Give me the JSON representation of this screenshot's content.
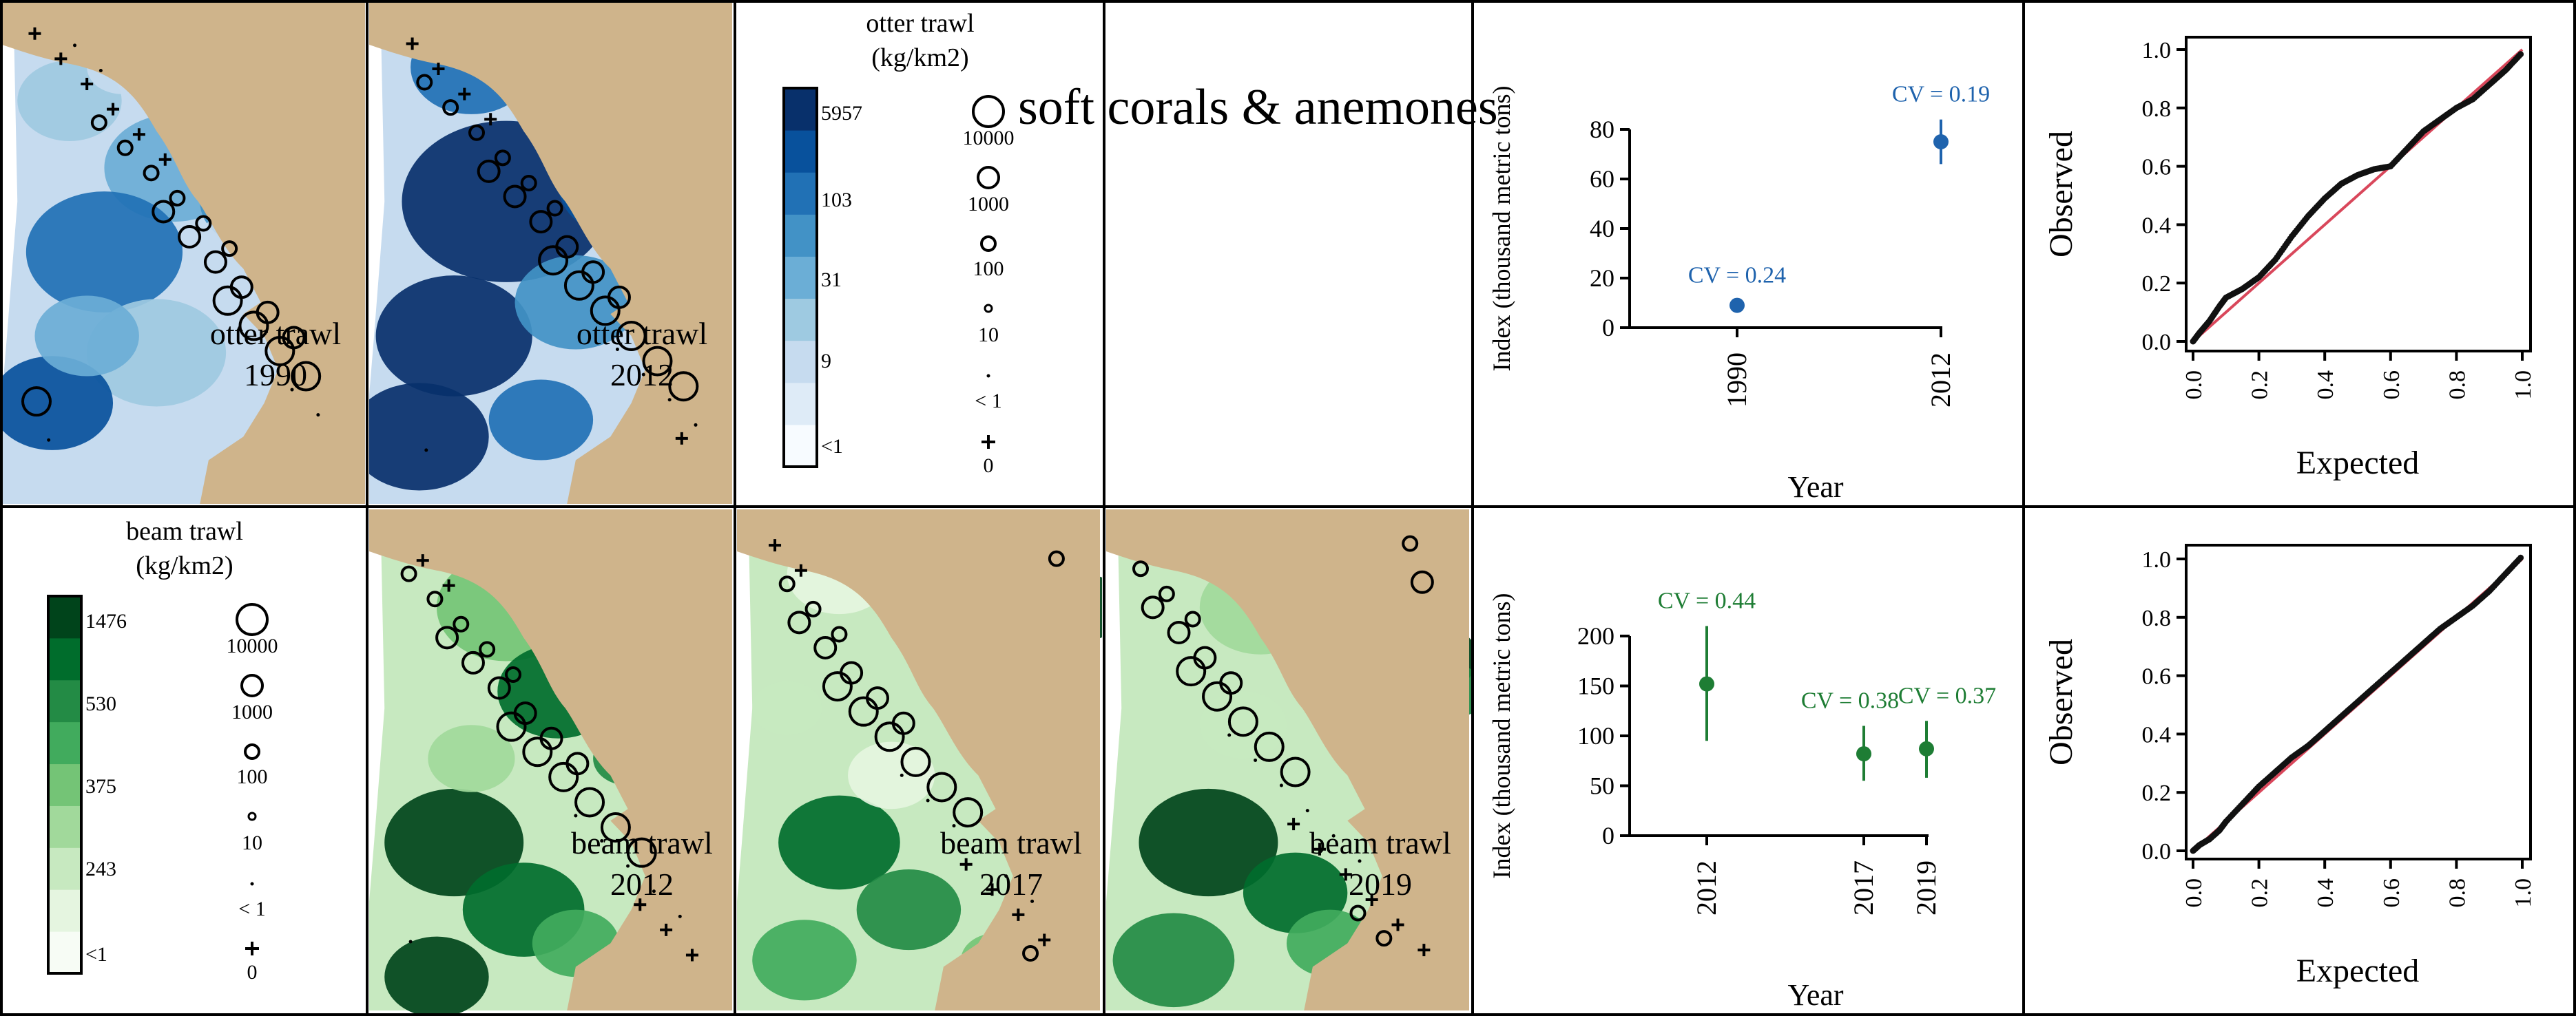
{
  "title": "soft corals & anemones",
  "colors": {
    "land": "#cfb48b",
    "otter_ramp": [
      "#f7fbff",
      "#deebf7",
      "#c6dbef",
      "#9ecae1",
      "#6baed6",
      "#4292c6",
      "#2171b5",
      "#08519c",
      "#08306b"
    ],
    "beam_ramp": [
      "#f7fcf5",
      "#e5f5e0",
      "#c7e9c0",
      "#a1d99b",
      "#74c476",
      "#41ab5d",
      "#238b45",
      "#006d2c",
      "#00441b"
    ],
    "otter_index": "#1f63ad",
    "beam_index": "#1e7d34",
    "qq_reference": "#d9475b",
    "qq_points": "#111111"
  },
  "maps": {
    "otter_1990": {
      "line1": "otter trawl",
      "line2": "1990"
    },
    "otter_2012": {
      "line1": "otter trawl",
      "line2": "2012"
    },
    "beam_2012": {
      "line1": "beam trawl",
      "line2": "2012"
    },
    "beam_2017": {
      "line1": "beam trawl",
      "line2": "2017"
    },
    "beam_2019": {
      "line1": "beam trawl",
      "line2": "2019"
    }
  },
  "legend_otter": {
    "title1": "otter trawl",
    "title2": "(kg/km2)",
    "breaks": [
      "5957",
      "103",
      "31",
      "9",
      "<1"
    ],
    "sizes": [
      "10000",
      "1000",
      "100",
      "10",
      "< 1",
      "0"
    ]
  },
  "legend_beam": {
    "title1": "beam trawl",
    "title2": "(kg/km2)",
    "breaks": [
      "1476",
      "530",
      "375",
      "243",
      "<1"
    ],
    "sizes": [
      "10000",
      "1000",
      "100",
      "10",
      "< 1",
      "0"
    ]
  },
  "chart_data": [
    {
      "type": "scatter",
      "name": "otter-index",
      "xlabel": "Year",
      "ylabel": "Index (thousand metric tons)",
      "categories": [
        "1990",
        "2012"
      ],
      "values": [
        9,
        75
      ],
      "lower": [
        7,
        66
      ],
      "upper": [
        11,
        84
      ],
      "cv_labels": [
        "CV = 0.24",
        "CV = 0.19"
      ],
      "yticks": [
        0,
        20,
        40,
        60,
        80
      ],
      "ylim": [
        0,
        80
      ]
    },
    {
      "type": "scatter",
      "name": "beam-index",
      "xlabel": "Year",
      "ylabel": "Index (thousand metric tons)",
      "categories": [
        "2012",
        "2017",
        "2019"
      ],
      "values": [
        152,
        82,
        87
      ],
      "lower": [
        95,
        55,
        58
      ],
      "upper": [
        210,
        110,
        115
      ],
      "cv_labels": [
        "CV = 0.44",
        "CV = 0.38",
        "CV = 0.37"
      ],
      "yticks": [
        0,
        50,
        100,
        150,
        200
      ],
      "ylim": [
        0,
        200
      ]
    },
    {
      "type": "scatter",
      "name": "otter-qq",
      "xlabel": "Expected",
      "ylabel": "Observed",
      "ticks": [
        "0.0",
        "0.2",
        "0.4",
        "0.6",
        "0.8",
        "1.0"
      ],
      "xlim": [
        0,
        1
      ],
      "ylim": [
        0,
        1
      ],
      "reference_line": [
        [
          0,
          0
        ],
        [
          1,
          1
        ]
      ],
      "x": [
        0.0,
        0.02,
        0.05,
        0.08,
        0.1,
        0.15,
        0.2,
        0.25,
        0.3,
        0.35,
        0.4,
        0.45,
        0.5,
        0.55,
        0.6,
        0.65,
        0.7,
        0.75,
        0.8,
        0.85,
        0.9,
        0.95,
        1.0
      ],
      "y": [
        0.0,
        0.03,
        0.07,
        0.12,
        0.15,
        0.18,
        0.22,
        0.28,
        0.36,
        0.43,
        0.49,
        0.54,
        0.57,
        0.59,
        0.6,
        0.66,
        0.72,
        0.76,
        0.8,
        0.83,
        0.88,
        0.93,
        0.99
      ]
    },
    {
      "type": "scatter",
      "name": "beam-qq",
      "xlabel": "Expected",
      "ylabel": "Observed",
      "ticks": [
        "0.0",
        "0.2",
        "0.4",
        "0.6",
        "0.8",
        "1.0"
      ],
      "xlim": [
        0,
        1
      ],
      "ylim": [
        0,
        1
      ],
      "reference_line": [
        [
          0,
          0
        ],
        [
          1,
          1
        ]
      ],
      "x": [
        0.0,
        0.02,
        0.05,
        0.08,
        0.1,
        0.15,
        0.2,
        0.25,
        0.3,
        0.35,
        0.4,
        0.45,
        0.5,
        0.55,
        0.6,
        0.65,
        0.7,
        0.75,
        0.8,
        0.85,
        0.9,
        0.95,
        1.0
      ],
      "y": [
        0.0,
        0.02,
        0.04,
        0.07,
        0.1,
        0.16,
        0.22,
        0.27,
        0.32,
        0.36,
        0.41,
        0.46,
        0.51,
        0.56,
        0.61,
        0.66,
        0.71,
        0.76,
        0.8,
        0.84,
        0.89,
        0.95,
        1.01
      ]
    }
  ]
}
